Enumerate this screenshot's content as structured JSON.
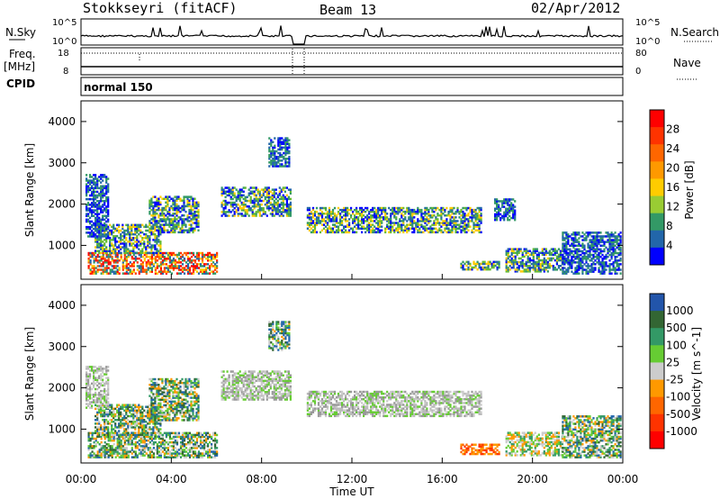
{
  "header": {
    "station": "Stokkseyri (fitACF)",
    "beam": "Beam 13",
    "date": "02/Apr/2012"
  },
  "strip_labels": {
    "nsky": "N.Sky",
    "freq": "Freq.",
    "mhz": "[MHz]",
    "cpid": "CPID",
    "nsearch": "N.Search",
    "nave": "Nave",
    "cpid_value": "normal 150",
    "nsky_ticks": [
      "10^5",
      "10^0"
    ],
    "nsearch_ticks": [
      "10^5",
      "10^0"
    ],
    "freq_ticks": [
      "18",
      "8"
    ],
    "nave_ticks": [
      "80",
      "0"
    ]
  },
  "chart_data": [
    {
      "type": "heatmap",
      "panel": "power",
      "ylabel": "Slant Range [km]",
      "colorbar_label": "Power [dB]",
      "colorbar_ticks": [
        "28",
        "24",
        "20",
        "16",
        "12",
        "8",
        "4"
      ],
      "colorbar_colors": [
        "#ff0000",
        "#ff3300",
        "#ff6600",
        "#ff9900",
        "#ffcc00",
        "#99cc33",
        "#339966",
        "#2266aa",
        "#0000ff"
      ],
      "ylim": [
        180,
        4500
      ],
      "yticks": [
        "4000",
        "3000",
        "2000",
        "1000"
      ],
      "xlim_hours": [
        0,
        24
      ],
      "xticks": [
        "00:00",
        "04:00",
        "08:00",
        "12:00",
        "16:00",
        "20:00",
        "00:00"
      ],
      "regions": [
        {
          "t0": 0.3,
          "t1": 6.0,
          "r0": 300,
          "r1": 800,
          "level": "high"
        },
        {
          "t0": 0.6,
          "t1": 3.5,
          "r0": 800,
          "r1": 1500,
          "level": "mid"
        },
        {
          "t0": 3.0,
          "t1": 5.2,
          "r0": 1300,
          "r1": 2200,
          "level": "mid"
        },
        {
          "t0": 0.2,
          "t1": 1.2,
          "r0": 1200,
          "r1": 2700,
          "level": "low"
        },
        {
          "t0": 6.2,
          "t1": 9.3,
          "r0": 1700,
          "r1": 2400,
          "level": "mid"
        },
        {
          "t0": 10.0,
          "t1": 17.7,
          "r0": 1300,
          "r1": 1900,
          "level": "mid"
        },
        {
          "t0": 16.8,
          "t1": 18.5,
          "r0": 400,
          "r1": 600,
          "level": "mid"
        },
        {
          "t0": 18.8,
          "t1": 21.3,
          "r0": 350,
          "r1": 900,
          "level": "mid"
        },
        {
          "t0": 21.3,
          "t1": 23.9,
          "r0": 300,
          "r1": 1300,
          "level": "low"
        },
        {
          "t0": 8.3,
          "t1": 9.2,
          "r0": 2900,
          "r1": 3600,
          "level": "low"
        },
        {
          "t0": 18.3,
          "t1": 19.2,
          "r0": 1600,
          "r1": 2100,
          "level": "low"
        }
      ]
    },
    {
      "type": "heatmap",
      "panel": "velocity",
      "ylabel": "Slant Range [km]",
      "colorbar_label": "Velocity [m s^-1]",
      "colorbar_ticks": [
        "1000",
        "500",
        "100",
        "25",
        "-25",
        "-100",
        "-500",
        "-1000"
      ],
      "colorbar_colors": [
        "#2255aa",
        "#336633",
        "#339966",
        "#66cc33",
        "#cccccc",
        "#ff9900",
        "#ff6600",
        "#ff3300",
        "#ff0000"
      ],
      "ylim": [
        180,
        4500
      ],
      "yticks": [
        "4000",
        "3000",
        "2000",
        "1000"
      ],
      "xlim_hours": [
        0,
        24
      ],
      "xticks": [
        "00:00",
        "04:00",
        "08:00",
        "12:00",
        "16:00",
        "20:00",
        "00:00"
      ],
      "xlabel": "Time UT",
      "regions": [
        {
          "t0": 0.3,
          "t1": 6.0,
          "r0": 300,
          "r1": 900,
          "level": "green"
        },
        {
          "t0": 0.6,
          "t1": 3.5,
          "r0": 800,
          "r1": 1600,
          "level": "green"
        },
        {
          "t0": 3.0,
          "t1": 5.2,
          "r0": 1200,
          "r1": 2200,
          "level": "green"
        },
        {
          "t0": 0.2,
          "t1": 1.2,
          "r0": 1500,
          "r1": 2500,
          "level": "grey"
        },
        {
          "t0": 6.2,
          "t1": 9.3,
          "r0": 1700,
          "r1": 2400,
          "level": "grey"
        },
        {
          "t0": 10.0,
          "t1": 17.7,
          "r0": 1300,
          "r1": 1900,
          "level": "grey"
        },
        {
          "t0": 16.8,
          "t1": 18.5,
          "r0": 380,
          "r1": 620,
          "level": "orange"
        },
        {
          "t0": 18.8,
          "t1": 21.3,
          "r0": 350,
          "r1": 900,
          "level": "mixed"
        },
        {
          "t0": 21.3,
          "t1": 23.9,
          "r0": 300,
          "r1": 1300,
          "level": "green"
        },
        {
          "t0": 8.3,
          "t1": 9.2,
          "r0": 2900,
          "r1": 3600,
          "level": "green"
        }
      ]
    }
  ]
}
